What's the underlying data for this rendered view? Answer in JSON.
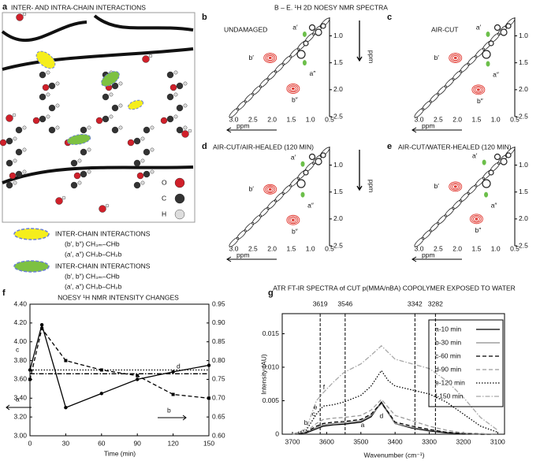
{
  "panel_a": {
    "label": "a",
    "title": "INTER- AND INTRA-CHAIN INTERACTIONS",
    "atoms": [
      "O",
      "C",
      "H"
    ],
    "legend": [
      {
        "title": "INTER-CHAIN INTERACTIONS",
        "color": "#f5ee1c",
        "lines": [
          "(b′, b″) CH₃ₘ–CHb",
          "(a′, a″) CH₃b–CH₂b"
        ]
      },
      {
        "title": "INTER-CHAIN INTERACTIONS",
        "color": "#7dc142",
        "lines": [
          "(b′, b″) CH₃ₘ–CHb",
          "(a′, a″) CH₃b–CH₂b"
        ]
      }
    ]
  },
  "nmr_header": "B – E. ¹H 2D NOESY NMR SPECTRA",
  "chart_data": [
    {
      "type": "contour",
      "panel": "b",
      "title": "UNDAMAGED",
      "xlabel": "ppm",
      "ylabel": "ppm",
      "xlim": [
        3.3,
        0.5
      ],
      "ylim": [
        0.7,
        2.5
      ],
      "xticks": [
        {
          "value": 3,
          "label": "3.0"
        },
        2.5,
        {
          "value": 2,
          "label": "2.0"
        },
        1.5,
        {
          "value": 1,
          "label": "1.0"
        },
        0.5
      ],
      "yticks": [
        {
          "value": 1,
          "label": "1.0"
        },
        1.5,
        {
          "value": 2,
          "label": "2.0"
        },
        2.5
      ],
      "peaks": [
        {
          "label": "a′",
          "x": 1.15,
          "y": 0.97,
          "color": "#6cbf4a"
        },
        {
          "label": "b′",
          "x": 2.05,
          "y": 1.41,
          "color": "#e0342c"
        },
        {
          "label": "a″",
          "x": 1.15,
          "y": 1.5,
          "color": "#6cbf4a"
        },
        {
          "label": "b″",
          "x": 1.45,
          "y": 1.98,
          "color": "#e0342c"
        }
      ]
    },
    {
      "type": "contour",
      "panel": "c",
      "title": "AIR-CUT",
      "xlabel": "ppm",
      "ylabel": "ppm",
      "xlim": [
        3.3,
        0.5
      ],
      "ylim": [
        0.7,
        2.5
      ],
      "xticks": [
        {
          "value": 3,
          "label": "3.0"
        },
        2.5,
        {
          "value": 2,
          "label": "2.0"
        },
        1.5,
        {
          "value": 1,
          "label": "1.0"
        },
        0.5
      ],
      "yticks": [
        {
          "value": 1,
          "label": "1.0"
        },
        1.5,
        {
          "value": 2,
          "label": "2.0"
        },
        2.5
      ],
      "peaks": [
        {
          "label": "a′",
          "x": 1.2,
          "y": 0.97,
          "color": "#6cbf4a"
        },
        {
          "label": "b′",
          "x": 2.05,
          "y": 1.41,
          "color": "#e0342c"
        },
        {
          "label": "a″",
          "x": 1.2,
          "y": 1.52,
          "color": "#6cbf4a"
        },
        {
          "label": "b″",
          "x": 1.45,
          "y": 2.0,
          "color": "#e0342c"
        }
      ]
    },
    {
      "type": "contour",
      "panel": "d",
      "title": "AIR-CUT/AIR-HEALED (120 MIN)",
      "xlabel": "ppm",
      "ylabel": "ppm",
      "xlim": [
        3.3,
        0.5
      ],
      "ylim": [
        0.7,
        2.5
      ],
      "xticks": [
        {
          "value": 3,
          "label": "3.0"
        },
        2.5,
        {
          "value": 2,
          "label": "2.0"
        },
        1.5,
        {
          "value": 1,
          "label": "1.0"
        },
        0.5
      ],
      "yticks": [
        {
          "value": 1,
          "label": "1.0"
        },
        1.5,
        {
          "value": 2,
          "label": "2.0"
        },
        2.5
      ],
      "peaks": [
        {
          "label": "a′",
          "x": 1.2,
          "y": 0.98,
          "color": "#6cbf4a"
        },
        {
          "label": "b′",
          "x": 2.05,
          "y": 1.45,
          "color": "#e0342c"
        },
        {
          "label": "a″",
          "x": 1.2,
          "y": 1.55,
          "color": "#6cbf4a"
        },
        {
          "label": "b″",
          "x": 1.45,
          "y": 2.02,
          "color": "#e0342c"
        }
      ]
    },
    {
      "type": "contour",
      "panel": "e",
      "title": "AIR-CUT/WATER-HEALED (120 MIN)",
      "xlabel": "ppm",
      "ylabel": "ppm",
      "xlim": [
        3.3,
        0.5
      ],
      "ylim": [
        0.7,
        2.5
      ],
      "xticks": [
        {
          "value": 3,
          "label": "3.0"
        },
        2.5,
        {
          "value": 2,
          "label": "2.0"
        },
        1.5,
        {
          "value": 1,
          "label": "1.0"
        },
        0.5
      ],
      "yticks": [
        {
          "value": 1,
          "label": "1.0"
        },
        1.5,
        {
          "value": 2,
          "label": "2.0"
        },
        2.5
      ],
      "peaks": [
        {
          "label": "a′",
          "x": 1.3,
          "y": 0.95,
          "color": "#6cbf4a"
        },
        {
          "label": "b′",
          "x": 2.05,
          "y": 1.4,
          "color": "#e0342c"
        },
        {
          "label": "a″",
          "x": 1.25,
          "y": 1.55,
          "color": "#6cbf4a"
        },
        {
          "label": "b″",
          "x": 1.5,
          "y": 2.0,
          "color": "#e0342c"
        }
      ]
    },
    {
      "type": "line",
      "panel": "f",
      "title": "NOESY ¹H NMR INTENSITY CHANGES",
      "xlabel": "Time (min)",
      "x": [
        0,
        10,
        30,
        60,
        90,
        120,
        150
      ],
      "xlim": [
        0,
        150
      ],
      "xticks": [
        0,
        30,
        60,
        90,
        120,
        150
      ],
      "ylim": [
        3,
        4.4
      ],
      "yticks": [
        {
          "value": 3,
          "label": "3.00"
        },
        {
          "value": 3.2,
          "label": "3.20"
        },
        {
          "value": 3.4,
          "label": "3.40"
        },
        {
          "value": 3.6,
          "label": "3.60"
        },
        {
          "value": 3.8,
          "label": "3.80"
        },
        {
          "value": 4,
          "label": "4.00"
        },
        {
          "value": 4.2,
          "label": "4.20"
        },
        {
          "value": 4.4,
          "label": "4.40"
        }
      ],
      "y2lim": [
        0.6,
        0.95
      ],
      "y2ticks": [
        {
          "value": 0.6,
          "label": "0.60"
        },
        0.65,
        {
          "value": 0.7,
          "label": "0.70"
        },
        0.75,
        {
          "value": 0.8,
          "label": "0.80"
        },
        0.85,
        {
          "value": 0.9,
          "label": "0.90"
        },
        0.95
      ],
      "series": [
        {
          "name": "a",
          "color": "#000000",
          "style": "solid",
          "marker": "circle",
          "values": [
            3.7,
            4.18,
            3.3,
            3.45,
            3.6,
            3.68,
            3.75
          ]
        },
        {
          "name": "b",
          "color": "#000000",
          "style": "dashed",
          "marker": "square",
          "axis": "y2",
          "values": [
            0.75,
            0.885,
            0.8,
            0.775,
            0.76,
            0.71,
            0.7
          ]
        },
        {
          "name": "c",
          "color": "#000000",
          "style": "dotted",
          "values": [
            3.7,
            3.7,
            3.7,
            3.7,
            3.7,
            3.7,
            3.7
          ]
        },
        {
          "name": "d",
          "color": "#000000",
          "style": "dashdot",
          "axis": "y2",
          "values": [
            0.765,
            0.765,
            0.765,
            0.765,
            0.765,
            0.765,
            0.765
          ]
        }
      ]
    },
    {
      "type": "line",
      "panel": "g",
      "title": "ATR FT-IR SPECTRA of CUT p(MMA/nBA) COPOLYMER EXPOSED TO WATER",
      "xlabel": "Wavenumber (cm⁻¹)",
      "ylabel": "Intensity (AU)",
      "legend": "upper right",
      "x": [
        3700,
        3660,
        3630,
        3610,
        3580,
        3550,
        3500,
        3470,
        3440,
        3420,
        3400,
        3350,
        3300,
        3250,
        3200,
        3150,
        3100
      ],
      "xlim": [
        3730,
        3080
      ],
      "xticks": [
        3700,
        3600,
        3500,
        3400,
        3300,
        3200,
        3100
      ],
      "ylim": [
        0,
        0.018
      ],
      "yticks": [
        0,
        0.005,
        {
          "value": 0.01,
          "label": "0.010"
        },
        0.015
      ],
      "reference_lines": [
        3619,
        3546,
        3342,
        3282
      ],
      "series": [
        {
          "name": "a-10 min",
          "color": "#000000",
          "style": "solid",
          "values": [
            0,
            0.0002,
            0.0008,
            0.0012,
            0.0014,
            0.0015,
            0.0018,
            0.0026,
            0.0048,
            0.0032,
            0.0016,
            0.0009,
            0.0005,
            0.0002,
            0.0001,
            0,
            0
          ]
        },
        {
          "name": "b-30 min",
          "color": "#8c8c8c",
          "style": "solid",
          "values": [
            0,
            0.0003,
            0.001,
            0.0014,
            0.0016,
            0.0017,
            0.002,
            0.0028,
            0.0046,
            0.0031,
            0.0016,
            0.001,
            0.0006,
            0.0003,
            0.0001,
            0,
            0
          ]
        },
        {
          "name": "c-60 min",
          "color": "#000000",
          "style": "dashed",
          "values": [
            0,
            0.0003,
            0.0012,
            0.0016,
            0.0018,
            0.0019,
            0.0022,
            0.003,
            0.0047,
            0.0033,
            0.0018,
            0.0012,
            0.0007,
            0.0003,
            0.0001,
            0,
            0
          ]
        },
        {
          "name": "d-90 min",
          "color": "#9a9a9a",
          "style": "dashed",
          "values": [
            0,
            0.0004,
            0.0016,
            0.0022,
            0.0024,
            0.0025,
            0.0028,
            0.0036,
            0.0052,
            0.004,
            0.0028,
            0.002,
            0.0012,
            0.0006,
            0.0002,
            0.0001,
            0
          ]
        },
        {
          "name": "e-120 min",
          "color": "#000000",
          "style": "dotted",
          "values": [
            0,
            0.0006,
            0.003,
            0.0042,
            0.0044,
            0.0048,
            0.0058,
            0.0072,
            0.0095,
            0.008,
            0.0072,
            0.0066,
            0.006,
            0.0048,
            0.003,
            0.0012,
            0.0003
          ]
        },
        {
          "name": "f-150 min",
          "color": "#a8a8a8",
          "style": "dashdot",
          "values": [
            0,
            0.0008,
            0.005,
            0.0062,
            0.0078,
            0.0092,
            0.0105,
            0.0118,
            0.0132,
            0.0122,
            0.0112,
            0.0105,
            0.0098,
            0.008,
            0.0055,
            0.0025,
            0.0006
          ]
        }
      ],
      "annotations": [
        {
          "text": "a",
          "x": 3495,
          "y": 0.0013
        },
        {
          "text": "b",
          "x": 3661,
          "y": 0.0017
        },
        {
          "text": "c",
          "x": 3638,
          "y": 0.003
        },
        {
          "text": "d",
          "x": 3440,
          "y": 0.0027
        },
        {
          "text": "e",
          "x": 3633,
          "y": 0.004
        },
        {
          "text": "f",
          "x": 3608,
          "y": 0.007
        }
      ]
    }
  ]
}
